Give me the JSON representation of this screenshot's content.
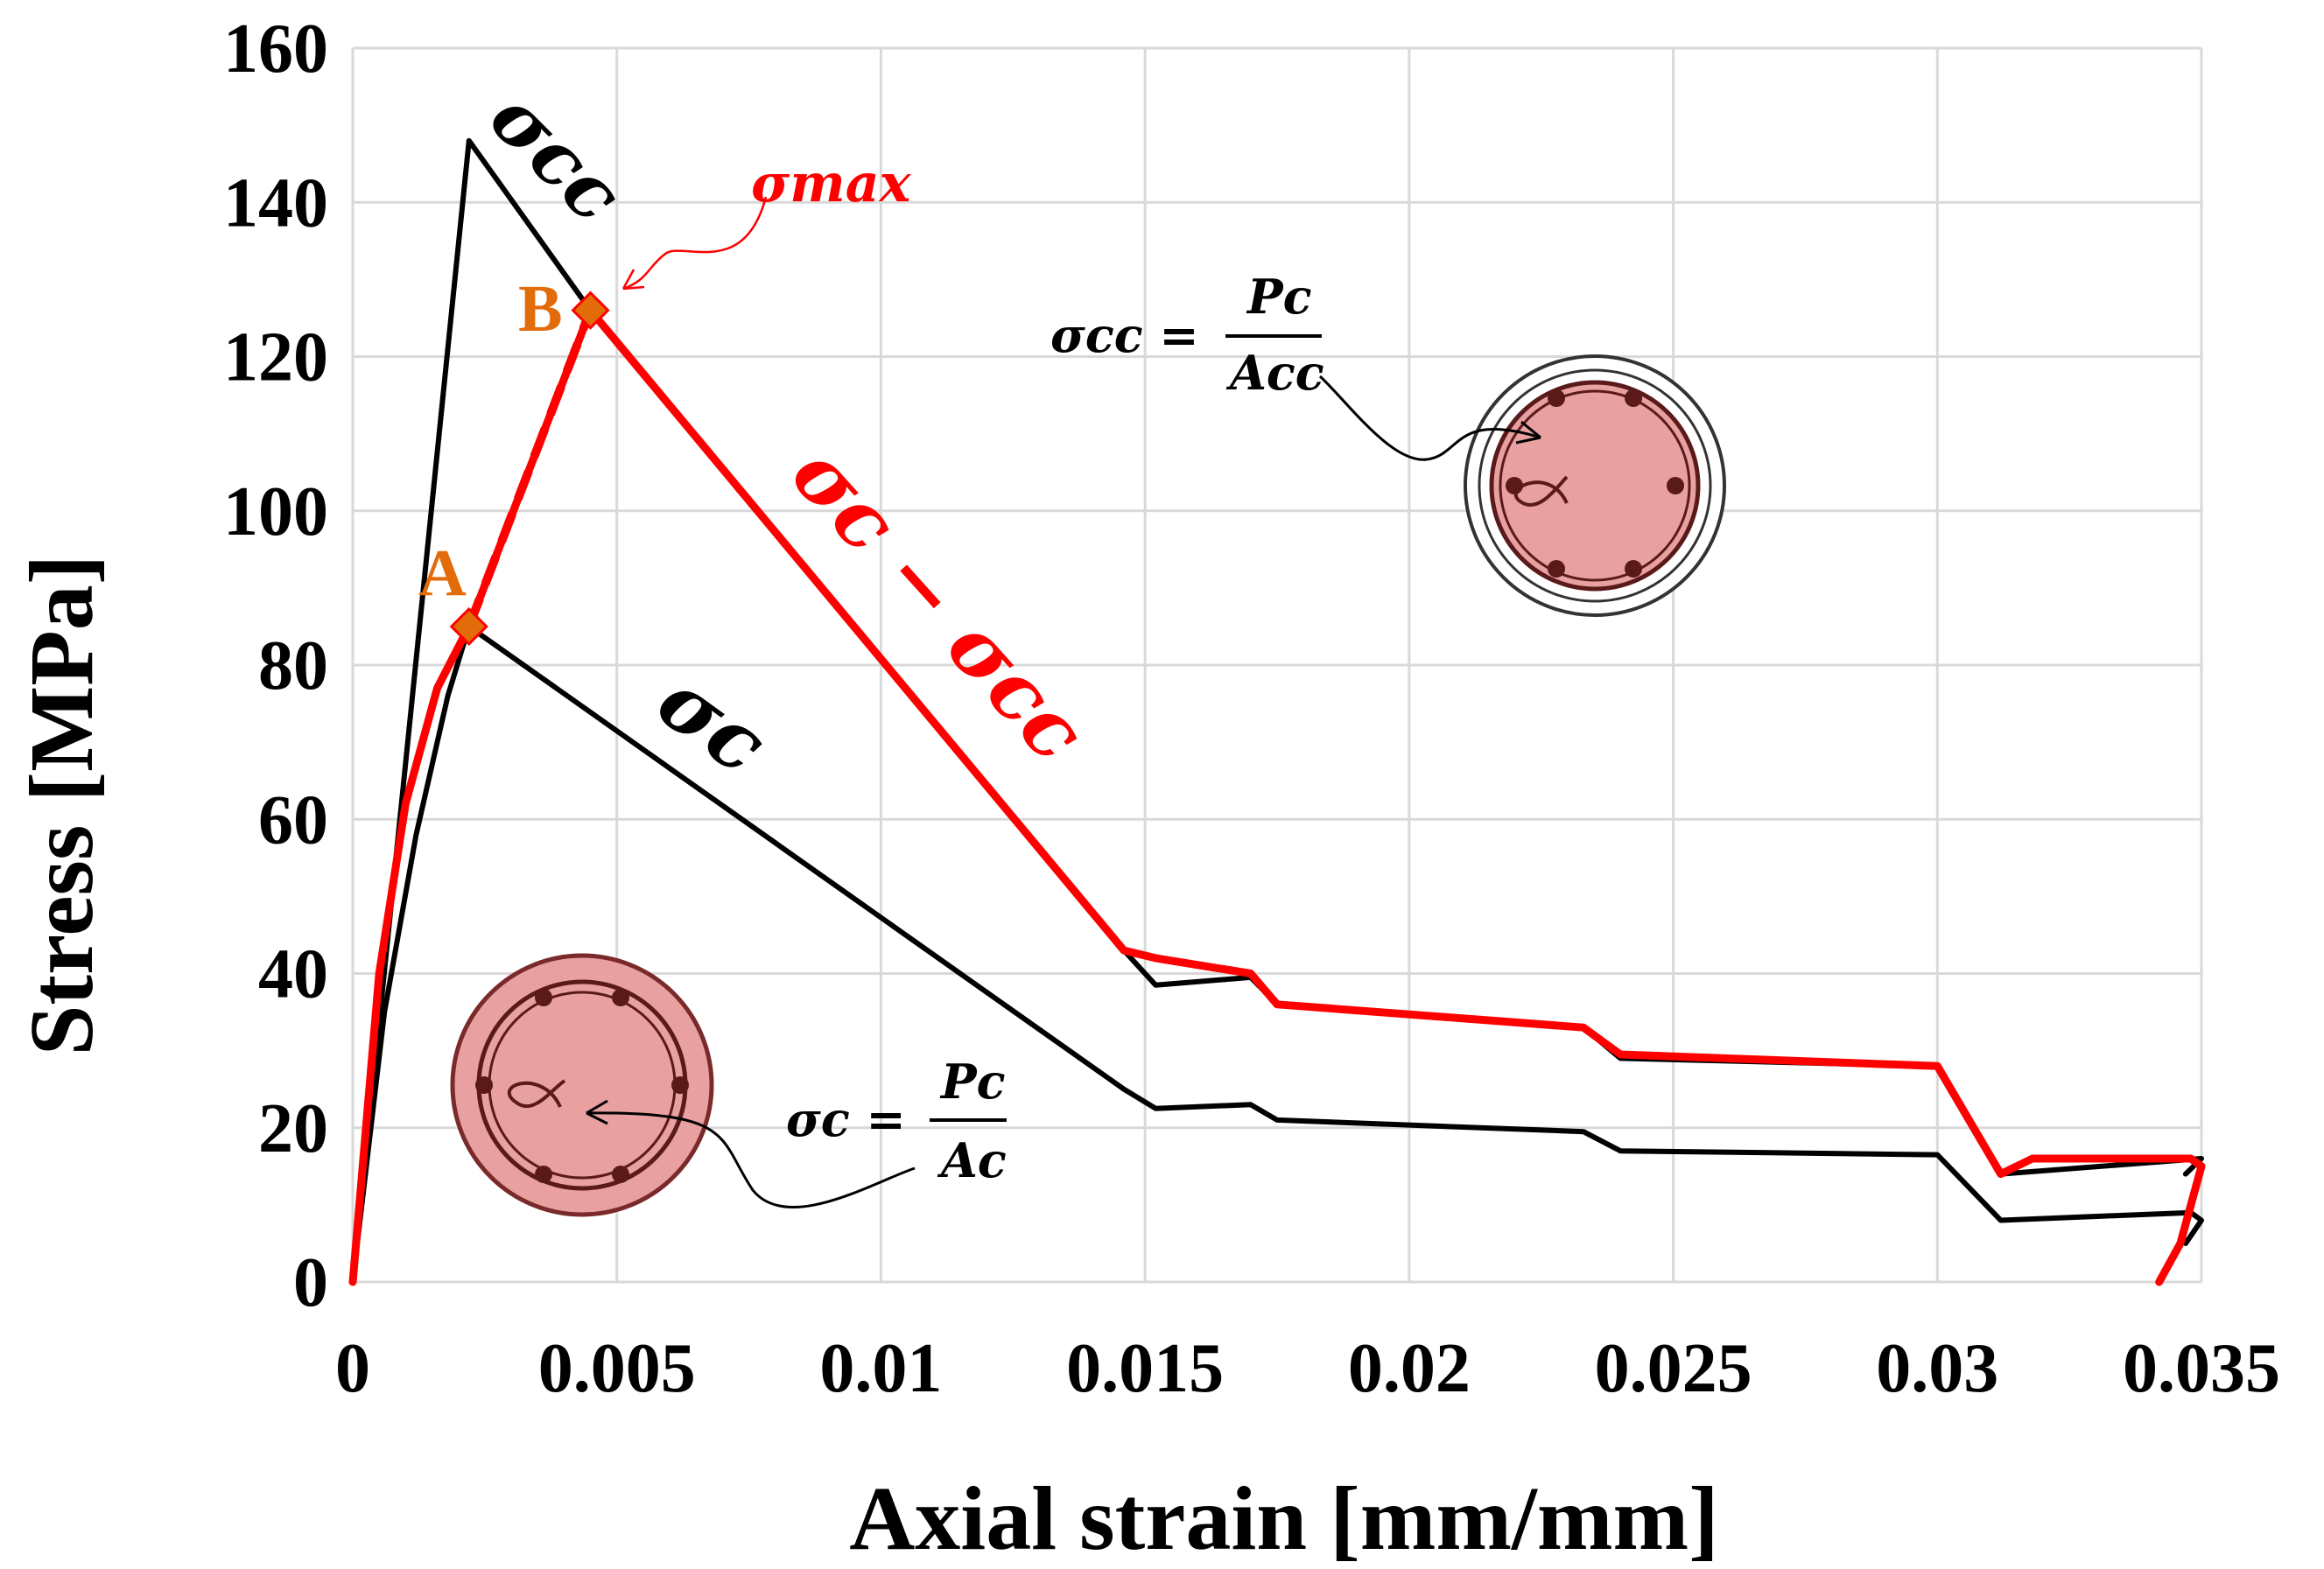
{
  "chart_data": {
    "type": "line",
    "xlabel": "Axial strain [mm/mm]",
    "ylabel": "Stress [MPa]",
    "xlim": [
      0,
      0.035
    ],
    "ylim": [
      0,
      160
    ],
    "xticks": [
      "0",
      "0.005",
      "0.01",
      "0.015",
      "0.02",
      "0.025",
      "0.03",
      "0.035"
    ],
    "yticks": [
      "0",
      "20",
      "40",
      "60",
      "80",
      "100",
      "120",
      "140",
      "160"
    ],
    "grid": true,
    "series": [
      {
        "name": "σcc",
        "color": "#000000",
        "x": [
          0,
          0.0022,
          0.0045,
          0.0146,
          0.0152,
          0.017,
          0.0175,
          0.0233,
          0.024,
          0.03,
          0.0312,
          0.035,
          0.0347
        ],
        "y": [
          0,
          148,
          126,
          43,
          38.5,
          39.5,
          36,
          33,
          29,
          28,
          14,
          16,
          14
        ]
      },
      {
        "name": "σc",
        "color": "#000000",
        "x": [
          0,
          0.0006,
          0.0012,
          0.0018,
          0.0022,
          0.0146,
          0.0152,
          0.017,
          0.0175,
          0.0233,
          0.024,
          0.03,
          0.0312,
          0.0348,
          0.035,
          0.0347
        ],
        "y": [
          0,
          35,
          58,
          76,
          85,
          25,
          22.5,
          23,
          21,
          19.5,
          17,
          16.5,
          8,
          9,
          8,
          5
        ]
      },
      {
        "name": "σc − σcc",
        "color": "#FF0000",
        "x": [
          0,
          0.0005,
          0.001,
          0.0016,
          0.0022,
          0.0045,
          0.0146,
          0.0152,
          0.017,
          0.0175,
          0.0233,
          0.024,
          0.03,
          0.0312,
          0.0318,
          0.0348,
          0.035,
          0.0346,
          0.0342
        ],
        "y": [
          0,
          40,
          62,
          77,
          85,
          126,
          43,
          42,
          40,
          36,
          33,
          29.5,
          28,
          14,
          16,
          16,
          15,
          5,
          0
        ]
      },
      {
        "name": "A-B",
        "color": "#FF0000",
        "dashed": true,
        "x": [
          0.0022,
          0.0045
        ],
        "y": [
          85,
          126
        ]
      }
    ],
    "points": [
      {
        "label": "A",
        "x": 0.0022,
        "y": 85
      },
      {
        "label": "B",
        "x": 0.0045,
        "y": 126
      }
    ],
    "annotations": {
      "sigma_cc": "σcc",
      "sigma_c": "σc",
      "sigma_diff": "σc − σcc",
      "sigma_max": "σmax",
      "formula_cc": {
        "lhs": "σcc =",
        "num": "Pc",
        "den": "Acc"
      },
      "formula_c": {
        "lhs": "σc =",
        "num": "Pc",
        "den": "Ac"
      }
    }
  }
}
